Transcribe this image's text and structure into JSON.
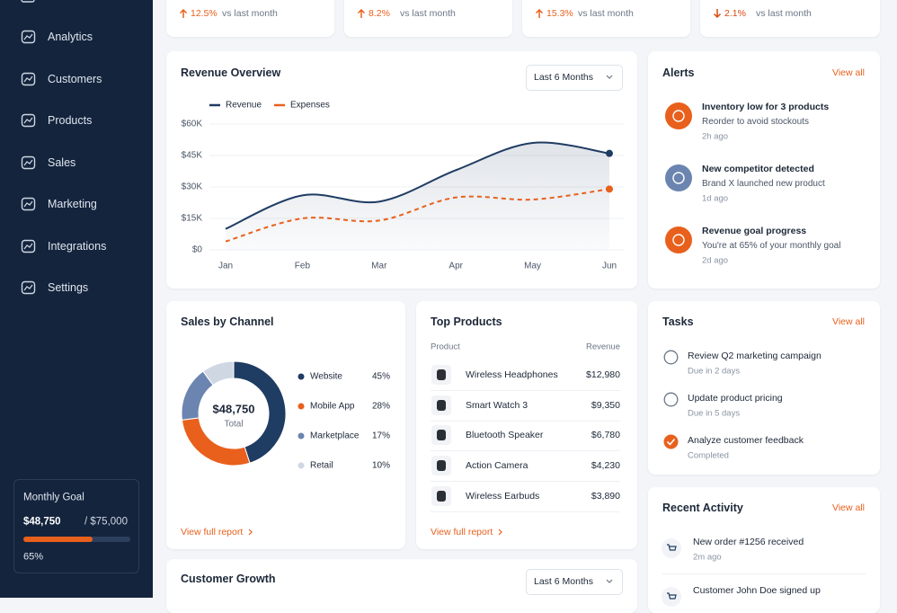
{
  "sidebar": {
    "nav": [
      "Analytics",
      "Customers",
      "Products",
      "Sales",
      "Marketing",
      "Integrations",
      "Settings"
    ],
    "goal": {
      "title": "Monthly Goal",
      "current": "$48,750",
      "target": "/ $75,000",
      "percent": 65,
      "percent_label": "65%"
    }
  },
  "kpis": [
    {
      "direction": "up",
      "change": "12.5%",
      "note": "vs last month"
    },
    {
      "direction": "up",
      "change": "8.2%",
      "note": "vs last month"
    },
    {
      "direction": "up",
      "change": "15.3%",
      "note": "vs last month"
    },
    {
      "direction": "down",
      "change": "2.1%",
      "note": "vs last month"
    }
  ],
  "revenue_overview": {
    "title": "Revenue Overview",
    "filter": "Last 6 Months",
    "chart_data": {
      "type": "line",
      "categories": [
        "Jan",
        "Feb",
        "Mar",
        "Apr",
        "May",
        "Jun"
      ],
      "series": [
        {
          "name": "Revenue",
          "color": "#1f3c63",
          "area": true,
          "dashed": false,
          "values": [
            10000,
            26000,
            23000,
            38000,
            51000,
            46000
          ]
        },
        {
          "name": "Expenses",
          "color": "#e8601c",
          "area": false,
          "dashed": true,
          "values": [
            4000,
            15000,
            14000,
            25000,
            24000,
            29000
          ]
        }
      ],
      "ylim": [
        0,
        60000
      ],
      "yticks": [
        {
          "value": 0,
          "label": "$0"
        },
        {
          "value": 15000,
          "label": "$15K"
        },
        {
          "value": 30000,
          "label": "$30K"
        },
        {
          "value": 45000,
          "label": "$45K"
        },
        {
          "value": 60000,
          "label": "$60K"
        }
      ],
      "grid": true
    }
  },
  "alerts": {
    "title": "Alerts",
    "link": "View all",
    "items": [
      {
        "title": "Inventory low for 3 products",
        "text": "Reorder to avoid stockouts",
        "time": "2h ago",
        "color": "#e8601c"
      },
      {
        "title": "New competitor detected",
        "text": "Brand X launched new product",
        "time": "1d ago",
        "color": "#6b85b0"
      },
      {
        "title": "Revenue goal progress",
        "text": "You're at 65% of your monthly goal",
        "time": "2d ago",
        "color": "#e8601c"
      }
    ]
  },
  "sales_by_channel": {
    "title": "Sales by Channel",
    "link": "View full report",
    "chart_data": {
      "type": "pie",
      "center_value": "$48,750",
      "center_label": "Total",
      "categories": [
        "Website",
        "Mobile App",
        "Marketplace",
        "Retail"
      ],
      "values": [
        45,
        28,
        17,
        10
      ],
      "value_labels": [
        "45%",
        "28%",
        "17%",
        "10%"
      ],
      "colors": [
        "#1f3c63",
        "#e8601c",
        "#6b85b0",
        "#cfd7e3"
      ]
    }
  },
  "top_products": {
    "title": "Top Products",
    "link": "View full report",
    "table": {
      "header": [
        "Product",
        "Revenue"
      ],
      "rows": [
        [
          "Wireless Headphones",
          "$12,980"
        ],
        [
          "Smart Watch 3",
          "$9,350"
        ],
        [
          "Bluetooth Speaker",
          "$6,780"
        ],
        [
          "Action Camera",
          "$4,230"
        ],
        [
          "Wireless Earbuds",
          "$3,890"
        ]
      ]
    }
  },
  "tasks": {
    "title": "Tasks",
    "link": "View all",
    "items": [
      {
        "title": "Review Q2 marketing campaign",
        "due": "Due in 2 days",
        "done": false
      },
      {
        "title": "Update product pricing",
        "due": "Due in 5 days",
        "done": false
      },
      {
        "title": "Analyze customer feedback",
        "due": "Completed",
        "done": true
      }
    ]
  },
  "recent_activity": {
    "title": "Recent Activity",
    "link": "View all",
    "items": [
      {
        "text": "New order #1256 received",
        "time": "2m ago"
      },
      {
        "text": "Customer John Doe signed up"
      }
    ]
  },
  "customer_growth": {
    "title": "Customer Growth",
    "filter": "Last 6 Months"
  }
}
